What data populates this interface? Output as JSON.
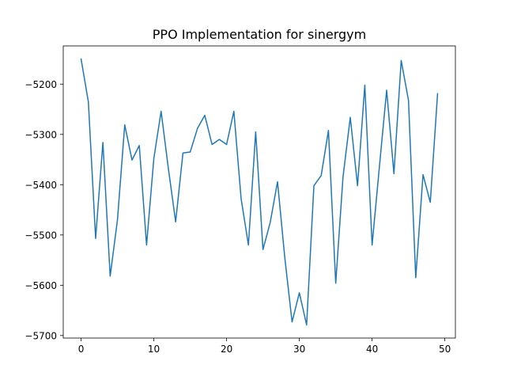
{
  "chart_data": {
    "type": "line",
    "title": "PPO Implementation for sinergym",
    "xlabel": "",
    "ylabel": "",
    "x": [
      0,
      1,
      2,
      3,
      4,
      5,
      6,
      7,
      8,
      9,
      10,
      11,
      12,
      13,
      14,
      15,
      16,
      17,
      18,
      19,
      20,
      21,
      22,
      23,
      24,
      25,
      26,
      27,
      28,
      29,
      30,
      31,
      32,
      33,
      34,
      35,
      36,
      37,
      38,
      39,
      40,
      41,
      42,
      43,
      44,
      45,
      46,
      47,
      48,
      49
    ],
    "series": [
      {
        "color": "#1f77b4",
        "values": [
          -5150,
          -5235,
          -5507,
          -5316,
          -5582,
          -5470,
          -5281,
          -5351,
          -5322,
          -5520,
          -5348,
          -5254,
          -5368,
          -5474,
          -5337,
          -5335,
          -5288,
          -5262,
          -5320,
          -5310,
          -5320,
          -5254,
          -5428,
          -5520,
          -5295,
          -5529,
          -5475,
          -5394,
          -5545,
          -5673,
          -5615,
          -5679,
          -5402,
          -5382,
          -5292,
          -5596,
          -5385,
          -5266,
          -5402,
          -5202,
          -5520,
          -5365,
          -5212,
          -5378,
          -5153,
          -5232,
          -5585,
          -5380,
          -5435,
          -5219
        ]
      }
    ],
    "xlim": [
      -2.45,
      51.45
    ],
    "ylim": [
      -5705,
      -5124
    ],
    "xticks": [
      0,
      10,
      20,
      30,
      40,
      50
    ],
    "xtick_labels": [
      "0",
      "10",
      "20",
      "30",
      "40",
      "50"
    ],
    "yticks": [
      -5700,
      -5600,
      -5500,
      -5400,
      -5300,
      -5200
    ],
    "ytick_labels": [
      "−5700",
      "−5600",
      "−5500",
      "−5400",
      "−5300",
      "−5200"
    ],
    "grid": false,
    "legend": false
  }
}
